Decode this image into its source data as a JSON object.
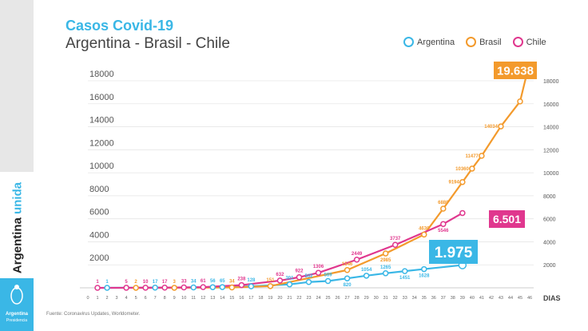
{
  "sidebar": {
    "brand_a": "Argentina",
    "brand_b": "unida",
    "logo_line1": "Argentina",
    "logo_line2": "Presidencia"
  },
  "header": {
    "title": "Casos Covid-19",
    "subtitle": "Argentina - Brasil - Chile"
  },
  "source": "Fuente: Coronavirus Updates, Worldometer.",
  "chart_data": {
    "type": "line",
    "title": "Casos Covid-19",
    "subtitle": "Argentina - Brasil - Chile",
    "xlabel": "DIAS",
    "ylabel": "",
    "xlim": [
      0,
      46
    ],
    "ylim": [
      0,
      18000
    ],
    "x_ticks": [
      0,
      1,
      2,
      3,
      4,
      5,
      6,
      7,
      8,
      9,
      10,
      11,
      12,
      13,
      14,
      15,
      16,
      17,
      18,
      19,
      20,
      21,
      22,
      23,
      24,
      25,
      26,
      27,
      28,
      29,
      30,
      31,
      32,
      33,
      34,
      35,
      36,
      37,
      38,
      39,
      40,
      41,
      42,
      43,
      44,
      45,
      46
    ],
    "y_ticks": [
      2000,
      4000,
      6000,
      8000,
      10000,
      12000,
      14000,
      16000,
      18000
    ],
    "grid": true,
    "legend_position": "top-right",
    "series": [
      {
        "name": "Argentina",
        "color": "#3ab7e6",
        "callout": "1.975",
        "points": [
          [
            2,
            1
          ],
          [
            7,
            17
          ],
          [
            11,
            34
          ],
          [
            13,
            56
          ],
          [
            14,
            65
          ],
          [
            17,
            128
          ],
          [
            21,
            301
          ],
          [
            23,
            502
          ],
          [
            25,
            589
          ],
          [
            27,
            820
          ],
          [
            29,
            1054
          ],
          [
            31,
            1265
          ],
          [
            33,
            1451
          ],
          [
            35,
            1628
          ],
          [
            39,
            1975
          ]
        ]
      },
      {
        "name": "Brasil",
        "color": "#f39a2c",
        "callout": "19.638",
        "points": [
          [
            5,
            2
          ],
          [
            9,
            3
          ],
          [
            15,
            34
          ],
          [
            19,
            151
          ],
          [
            27,
            1546
          ],
          [
            31,
            2985
          ],
          [
            35,
            4630
          ],
          [
            37,
            6880
          ],
          [
            39,
            9194
          ],
          [
            40,
            10360
          ],
          [
            41,
            11477
          ],
          [
            43,
            14034
          ],
          [
            45,
            16200
          ],
          [
            46,
            19638
          ]
        ]
      },
      {
        "name": "Chile",
        "color": "#e0378e",
        "callout": "6.501",
        "points": [
          [
            1,
            1
          ],
          [
            4,
            5
          ],
          [
            6,
            10
          ],
          [
            8,
            17
          ],
          [
            10,
            33
          ],
          [
            12,
            61
          ],
          [
            16,
            238
          ],
          [
            20,
            632
          ],
          [
            22,
            922
          ],
          [
            24,
            1306
          ],
          [
            28,
            2449
          ],
          [
            32,
            3737
          ],
          [
            37,
            5546
          ],
          [
            39,
            6501
          ]
        ]
      }
    ]
  }
}
